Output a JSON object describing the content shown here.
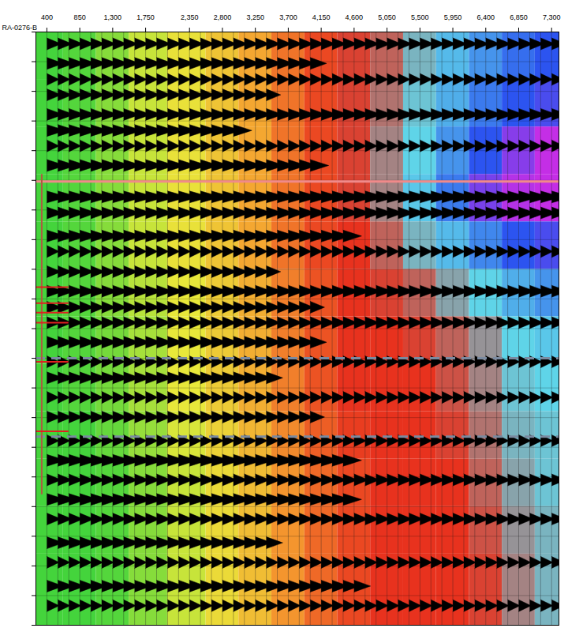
{
  "chart_data": {
    "type": "seismic",
    "title": "RA-0276-B",
    "xlim": [
      250,
      7400
    ],
    "xticks": [
      400,
      850,
      1300,
      1750,
      2350,
      2800,
      3250,
      3700,
      4150,
      4600,
      5050,
      5500,
      5950,
      6400,
      6850,
      7300
    ],
    "ylim": [
      0,
      100
    ],
    "yticks": [
      0,
      5,
      10,
      15,
      20,
      25,
      30,
      35,
      40,
      45,
      50,
      55,
      60,
      65,
      70,
      75,
      80,
      85,
      90,
      95,
      100
    ],
    "grid": true,
    "tick_labels": "x",
    "traces": [
      400,
      550,
      700,
      850,
      1000,
      1150,
      1300,
      1450,
      1600,
      1750,
      1900,
      2050,
      2200,
      2350,
      2500,
      2650,
      2800,
      2950,
      3100,
      3250,
      3400,
      3550,
      3700,
      3850,
      4000,
      4150,
      4300,
      4450,
      4600,
      4750,
      4900,
      5050,
      5200,
      5350,
      5500,
      5650,
      5800,
      5950,
      6100,
      6250,
      6400,
      6550,
      6700,
      6850,
      7000,
      7150,
      7300
    ],
    "events": {
      "time": [
        2,
        5.3,
        8,
        10.6,
        13.9,
        16.6,
        19.2,
        22.5,
        27.8,
        30.5,
        34.4,
        37,
        40.4,
        43.7,
        46.4,
        49,
        52.3,
        55.6,
        58.3,
        61.6,
        64.9,
        68.9,
        72.2,
        75.5,
        78.8,
        82.1,
        86.1,
        89.4,
        93.4,
        96.7
      ],
      "amplitude": [
        0.7,
        0.8,
        0.6,
        0.7,
        0.8,
        0.9,
        0.6,
        0.9,
        1.0,
        0.8,
        0.9,
        0.6,
        0.7,
        0.8,
        0.7,
        0.7,
        0.8,
        0.6,
        0.8,
        0.6,
        0.7,
        0.6,
        0.9,
        0.7,
        0.9,
        0.7,
        0.8,
        0.6,
        0.8,
        0.6
      ],
      "x_max": [
        7300,
        4000,
        7300,
        3500,
        7300,
        3000,
        7300,
        4000,
        7300,
        7300,
        4500,
        7300,
        3500,
        7300,
        4000,
        7300,
        4000,
        7300,
        3500,
        7300,
        4000,
        7300,
        4500,
        7300,
        4500,
        7300,
        3500,
        7300,
        4600,
        7300
      ]
    },
    "cells": {
      "x": [
        400,
        850,
        1300,
        1750,
        2350,
        2800,
        3250,
        3700,
        4150,
        4600,
        5050,
        5500,
        5950,
        6400,
        6850,
        7300
      ],
      "y": [
        4,
        12,
        20,
        28,
        36,
        44,
        52,
        60,
        68,
        76,
        84,
        92
      ],
      "values": [
        [
          0,
          0.1,
          0.4,
          0.8,
          1.1,
          1.5,
          1.9,
          2.4,
          2.8,
          3.1,
          3.3,
          3.8,
          4.2,
          4.5,
          4.8,
          5.0
        ],
        [
          0,
          0.1,
          0.4,
          0.8,
          1.1,
          1.5,
          1.9,
          2.4,
          2.8,
          3.1,
          3.4,
          3.9,
          4.3,
          4.7,
          5.0,
          5.2
        ],
        [
          0,
          0.1,
          0.4,
          0.8,
          1.1,
          1.5,
          1.9,
          2.4,
          2.8,
          3.1,
          3.5,
          4.0,
          4.5,
          5.0,
          5.6,
          6.0
        ],
        [
          0,
          0.1,
          0.4,
          0.8,
          1.1,
          1.5,
          1.9,
          2.4,
          2.8,
          3.1,
          3.5,
          4.1,
          4.7,
          5.5,
          5.9,
          6.0
        ],
        [
          0,
          0.1,
          0.4,
          0.8,
          1.1,
          1.5,
          1.9,
          2.4,
          2.8,
          3.0,
          3.3,
          3.8,
          4.2,
          4.6,
          5.0,
          5.2
        ],
        [
          0,
          0.1,
          0.4,
          0.7,
          1.0,
          1.4,
          1.8,
          2.3,
          2.7,
          3.0,
          3.1,
          3.3,
          3.7,
          4.0,
          4.3,
          4.5
        ],
        [
          0,
          0.1,
          0.3,
          0.6,
          1.0,
          1.4,
          1.8,
          2.3,
          2.7,
          3.0,
          3.0,
          3.1,
          3.3,
          3.6,
          4.0,
          4.1
        ],
        [
          0,
          0.1,
          0.3,
          0.6,
          1.0,
          1.4,
          1.8,
          2.3,
          2.7,
          3.0,
          3.0,
          3.0,
          3.2,
          3.5,
          3.9,
          4.0
        ],
        [
          0,
          0,
          0.2,
          0.5,
          0.9,
          1.3,
          1.7,
          2.2,
          2.6,
          2.9,
          3.0,
          3.0,
          3.1,
          3.4,
          3.8,
          3.9
        ],
        [
          0,
          0,
          0.1,
          0.4,
          0.8,
          1.2,
          1.6,
          2.1,
          2.5,
          2.8,
          3.0,
          3.0,
          3.0,
          3.3,
          3.7,
          3.9
        ],
        [
          0,
          0,
          0.1,
          0.4,
          0.8,
          1.2,
          1.6,
          2.1,
          2.5,
          2.8,
          3.0,
          3.0,
          3.0,
          3.2,
          3.6,
          3.8
        ],
        [
          0,
          0,
          0.1,
          0.4,
          0.8,
          1.2,
          1.6,
          2.1,
          2.5,
          2.8,
          3.0,
          3.0,
          3.0,
          3.1,
          3.5,
          3.8
        ]
      ]
    },
    "color_range": [
      0,
      6
    ],
    "horizon": {
      "y": 25.2,
      "color": "#f08a8a"
    },
    "zone": {
      "y": [
        55,
        68.2
      ],
      "color": "#7a8aa0",
      "line_style": "dashed"
    },
    "well": {
      "x": 330,
      "y": [
        24,
        78
      ],
      "color": "#b05a40"
    },
    "well_markers": {
      "y": [
        43,
        45.7,
        47.3,
        49,
        55.6,
        67.3
      ],
      "x": [
        250,
        700
      ],
      "color": "#e02020"
    }
  }
}
